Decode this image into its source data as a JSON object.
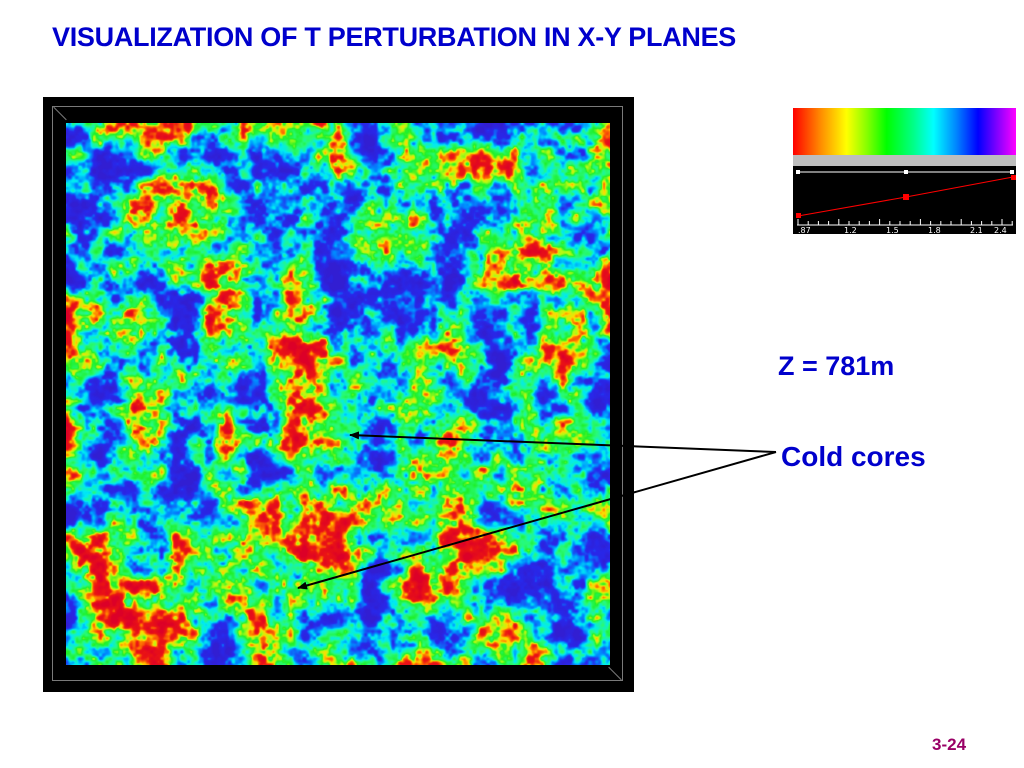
{
  "slide": {
    "title": "VISUALIZATION OF T PERTURBATION IN X-Y PLANES",
    "slide_number": "3-24"
  },
  "annotations": {
    "height_label": "Z = 781m",
    "cold_cores_label": "Cold cores"
  },
  "colormap": {
    "tick_labels": [
      ".87",
      "1.2",
      "1.5",
      "1.8",
      "2.1",
      "2.4"
    ],
    "gradient_colors": [
      "#ff0000",
      "#ffff00",
      "#00ff00",
      "#00ffff",
      "#0000ff",
      "#ff00ff"
    ],
    "curve_color": "#ff0000"
  },
  "field": {
    "dominant_colors": [
      "#00ffff",
      "#00ff00",
      "#0000ff",
      "#ff0000"
    ]
  }
}
